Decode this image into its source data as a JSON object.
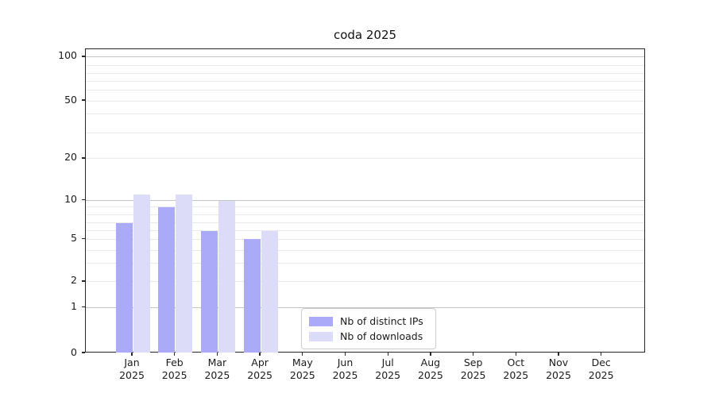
{
  "chart_data": {
    "type": "bar",
    "title": "coda 2025",
    "categories": [
      "Jan 2025",
      "Feb 2025",
      "Mar 2025",
      "Apr 2025",
      "May 2025",
      "Jun 2025",
      "Jul 2025",
      "Aug 2025",
      "Sep 2025",
      "Oct 2025",
      "Nov 2025",
      "Dec 2025"
    ],
    "series": [
      {
        "name": "Nb of distinct IPs",
        "color": "#aaaaf8",
        "values": [
          7,
          9,
          6,
          5,
          null,
          null,
          null,
          null,
          null,
          null,
          null,
          null
        ]
      },
      {
        "name": "Nb of downloads",
        "color": "#dcdcf9",
        "values": [
          11,
          11,
          10,
          6,
          null,
          null,
          null,
          null,
          null,
          null,
          null,
          null
        ]
      }
    ],
    "y_axis": {
      "major_ticks": [
        0,
        1,
        2,
        5,
        10,
        20,
        50,
        100
      ],
      "gridline_values": [
        1,
        2,
        3,
        4,
        5,
        6,
        7,
        8,
        9,
        10,
        20,
        30,
        40,
        50,
        60,
        70,
        80,
        90,
        100
      ],
      "emphasized_gridlines": [
        1,
        10,
        100
      ],
      "scale_anchors": [
        [
          0,
          0.0
        ],
        [
          1,
          0.1503
        ],
        [
          2,
          0.2353
        ],
        [
          3,
          0.2967
        ],
        [
          4,
          0.3386
        ],
        [
          5,
          0.3752
        ],
        [
          6,
          0.4031
        ],
        [
          7,
          0.4293
        ],
        [
          8,
          0.4554
        ],
        [
          9,
          0.4816
        ],
        [
          10,
          0.5025
        ],
        [
          20,
          0.64
        ],
        [
          30,
          0.7247
        ],
        [
          40,
          0.7869
        ],
        [
          50,
          0.8301
        ],
        [
          60,
          0.8667
        ],
        [
          70,
          0.8954
        ],
        [
          80,
          0.9216
        ],
        [
          90,
          0.9477
        ],
        [
          100,
          0.9739
        ]
      ]
    },
    "grid": true,
    "legend": {
      "position": "lower center",
      "entries": [
        "Nb of distinct IPs",
        "Nb of downloads"
      ]
    },
    "colors": {
      "major_grid": "#c3c3c3",
      "minor_grid": "#e9e9e9",
      "spine": "#262626",
      "text": "#1a1a1a"
    }
  }
}
